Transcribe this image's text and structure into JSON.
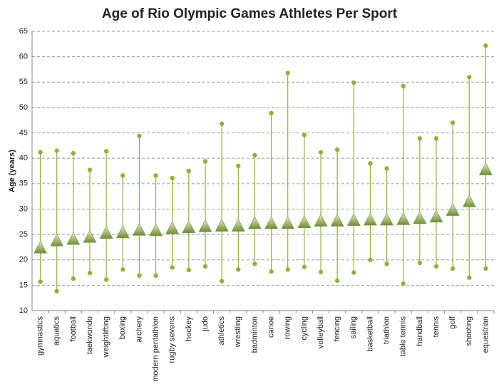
{
  "chart_data": {
    "type": "high-low",
    "title": "Age of Rio Olympic Games Athletes Per Sport",
    "y_label": "Age (years)",
    "categories": [
      "gymnastics",
      "aquatics",
      "football",
      "taekwondo",
      "weightlifting",
      "boxing",
      "archery",
      "modern pentathlon",
      "rugby sevens",
      "hockey",
      "judo",
      "athletics",
      "wrestling",
      "badminton",
      "canoe",
      "rowing",
      "cycling",
      "volleyball",
      "fencing",
      "sailing",
      "basketball",
      "triathlon",
      "table tennis",
      "handball",
      "tennis",
      "golf",
      "shooting",
      "equestrian"
    ],
    "high": [
      41.2,
      41.5,
      41,
      37.7,
      41.4,
      36.6,
      44.4,
      36.6,
      36.1,
      37.5,
      39.4,
      46.8,
      38.5,
      40.6,
      48.9,
      56.8,
      44.6,
      41.2,
      41.7,
      54.9,
      39,
      38,
      54.2,
      43.9,
      43.9,
      47,
      56,
      62.2
    ],
    "low": [
      15.7,
      13.8,
      16.3,
      17.4,
      16.1,
      18.1,
      16.9,
      16.9,
      18.5,
      18,
      18.7,
      15.8,
      18.1,
      19.2,
      17.7,
      18.1,
      18.6,
      17.6,
      15.9,
      17.5,
      20,
      19.2,
      15.3,
      19.4,
      18.7,
      18.3,
      16.5,
      18.3
    ],
    "mean": [
      22.3,
      23.7,
      24,
      24.4,
      25.2,
      25.3,
      25.8,
      25.7,
      26.1,
      26.3,
      26.5,
      26.6,
      26.6,
      27.1,
      27.1,
      27.1,
      27.3,
      27.6,
      27.6,
      27.7,
      27.8,
      27.8,
      27.9,
      28.1,
      28.4,
      29.7,
      31.4,
      37.7
    ],
    "color": "#8db33a",
    "ylim": [
      10,
      65
    ],
    "yticks": [
      10,
      15,
      20,
      25,
      30,
      35,
      40,
      45,
      50,
      55,
      60,
      65
    ],
    "grid": true
  }
}
